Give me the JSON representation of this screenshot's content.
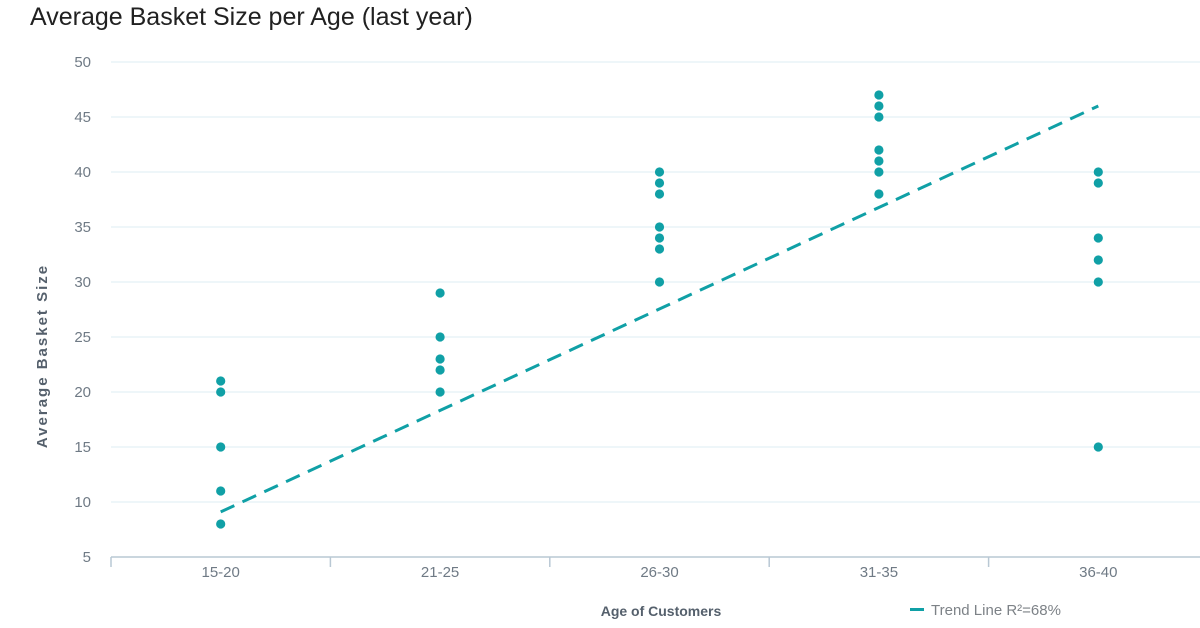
{
  "header": {
    "title": "Average Basket Size per Age (last year)"
  },
  "chart_data": {
    "type": "scatter",
    "title": "Average Basket Size per Age (last year)",
    "xlabel": "Age of Customers",
    "ylabel": "Average Basket Size",
    "categories": [
      "15-20",
      "21-25",
      "26-30",
      "31-35",
      "36-40"
    ],
    "series": [
      {
        "name": "15-20",
        "values": [
          21,
          20,
          15,
          11,
          8
        ]
      },
      {
        "name": "21-25",
        "values": [
          29,
          25,
          23,
          22,
          20
        ]
      },
      {
        "name": "26-30",
        "values": [
          40,
          39,
          38,
          35,
          34,
          33,
          30
        ]
      },
      {
        "name": "31-35",
        "values": [
          47,
          46,
          45,
          42,
          41,
          40,
          38
        ]
      },
      {
        "name": "36-40",
        "values": [
          40,
          39,
          34,
          32,
          30,
          15
        ]
      }
    ],
    "trend_line": {
      "label": "Trend Line R²=68%",
      "r_squared": "68%",
      "style": "dashed",
      "start": {
        "category_index": 0,
        "value": 9.1
      },
      "end": {
        "category_index": 4,
        "value": 46
      }
    },
    "ylim": [
      5,
      50
    ],
    "yticks": [
      5,
      10,
      15,
      20,
      25,
      30,
      35,
      40,
      45,
      50
    ],
    "grid": "horizontal",
    "legend_position": "bottom-right",
    "colors": {
      "point": "#10a0a6",
      "trend": "#10a0a6",
      "grid": "#dcecf3",
      "axis": "#b9c8d4",
      "tick_label": "#6f7a85",
      "axis_title": "#55606c",
      "title": "#212121",
      "legend_text": "#7d8287",
      "background": "#ffffff"
    }
  }
}
